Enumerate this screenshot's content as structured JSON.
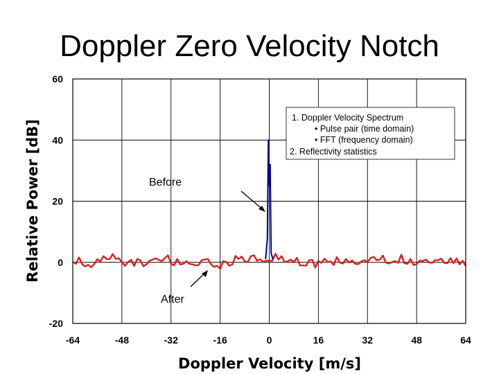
{
  "chart_data": {
    "type": "line",
    "title": "Doppler Zero Velocity Notch",
    "xlabel": "Doppler Velocity [m/s]",
    "ylabel": "Relative Power [dB]",
    "xlim": [
      -64,
      64
    ],
    "ylim": [
      -20,
      60
    ],
    "x_ticks": [
      "-64",
      "-48",
      "-32",
      "-16",
      "0",
      "16",
      "32",
      "48",
      "64"
    ],
    "y_ticks": [
      "60",
      "40",
      "20",
      "0",
      "-20"
    ],
    "grid": true,
    "series": [
      {
        "name": "Before",
        "color": "#00008b",
        "points": [
          [
            -1.2,
            1
          ],
          [
            -0.6,
            8
          ],
          [
            -0.3,
            40
          ],
          [
            0.0,
            25
          ],
          [
            0.3,
            32
          ],
          [
            0.6,
            3
          ],
          [
            1.2,
            1
          ]
        ]
      },
      {
        "name": "After",
        "color": "#d62020",
        "x_start": -64,
        "x_step": 1,
        "values": [
          0.2,
          -0.5,
          1.6,
          -0.5,
          -1.4,
          -0.8,
          -1.6,
          -0.5,
          1.0,
          0.3,
          2.0,
          1.1,
          1.0,
          2.7,
          1.1,
          1.3,
          0.1,
          -1.2,
          0.1,
          0.8,
          -1.2,
          1.1,
          0.6,
          -1.3,
          -0.7,
          0.5,
          0.9,
          1.3,
          0.8,
          0.4,
          1.4,
          2.3,
          -0.5,
          -1.0,
          1.1,
          -0.7,
          -0.5,
          0.4,
          -0.5,
          -0.7,
          -1.0,
          -0.9,
          0.7,
          0.9,
          1.1,
          -0.6,
          -1.5,
          -1.1,
          -2.1,
          0.4,
          0.1,
          -1.1,
          -0.7,
          2.1,
          1.1,
          1.9,
          0.3,
          0.1,
          2.0,
          2.3,
          0.5,
          1.0,
          0.2,
          0.5,
          0.5,
          0.5,
          2.8,
          0.9,
          2.0,
          0.1,
          0.3,
          0.9,
          0.0,
          1.5,
          -1.0,
          -1.0,
          -1.1,
          0.7,
          0.8,
          -1.7,
          0.5,
          -0.2,
          1.2,
          0.1,
          0.3,
          -0.9,
          1.7,
          -0.1,
          -0.4,
          1.1,
          -0.1,
          0.6,
          -0.5,
          -0.6,
          0.3,
          0.7,
          0.1,
          1.4,
          1.8,
          0.7,
          0.9,
          2.2,
          -0.1,
          -0.4,
          0.1,
          0.4,
          -0.2,
          2.5,
          -0.3,
          -0.5,
          1.1,
          -0.9,
          -0.6,
          0.6,
          0.4,
          0.9,
          0.0,
          -0.2,
          0.7,
          0.7,
          1.2,
          -0.2,
          -0.3,
          1.4,
          -0.3,
          1.3,
          -0.7,
          0.5,
          -1.2
        ]
      }
    ],
    "annotations": {
      "before_label": "Before",
      "after_label": "After",
      "note_lines": [
        "1.    Doppler Velocity Spectrum",
        "•     Pulse pair (time domain)",
        "•     FFT (frequency domain)",
        "2. Reflectivity statistics"
      ]
    }
  }
}
